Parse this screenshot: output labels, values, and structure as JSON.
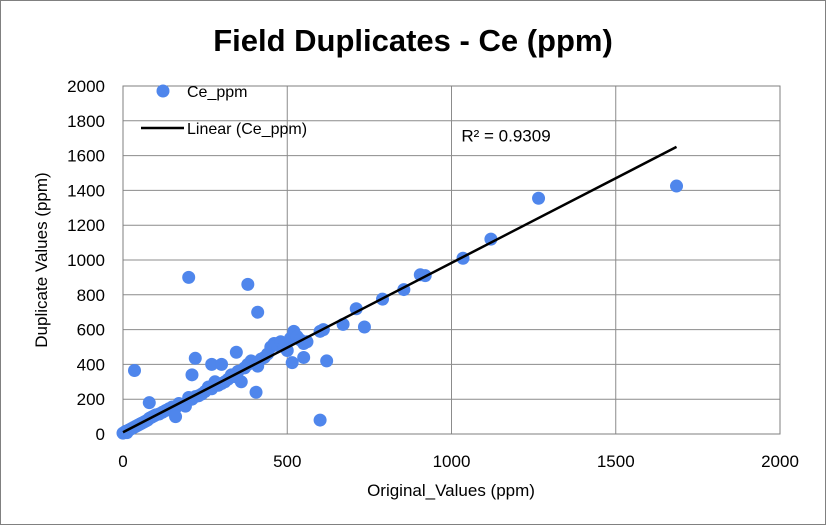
{
  "chart_data": {
    "type": "scatter",
    "title": "Field Duplicates  - Ce (ppm)",
    "xlabel": "Original_Values (ppm)",
    "ylabel": "Duplicate Values (ppm)",
    "xlim": [
      0,
      2000
    ],
    "ylim": [
      0,
      2000
    ],
    "x_ticks": [
      0,
      500,
      1000,
      1500,
      2000
    ],
    "y_ticks": [
      0,
      200,
      400,
      600,
      800,
      1000,
      1200,
      1400,
      1600,
      1800,
      2000
    ],
    "x_tick_labels": [
      "0",
      "500",
      "1000",
      "1500",
      "2000"
    ],
    "y_tick_labels": [
      "0",
      "200",
      "400",
      "600",
      "800",
      "1000",
      "1200",
      "1400",
      "1600",
      "1800",
      "2000"
    ],
    "grid": true,
    "legend_position": "top-left",
    "series": [
      {
        "name": "Ce_ppm",
        "color": "#4f86ec",
        "points": [
          [
            0,
            5
          ],
          [
            5,
            10
          ],
          [
            8,
            15
          ],
          [
            12,
            8
          ],
          [
            15,
            20
          ],
          [
            20,
            25
          ],
          [
            25,
            30
          ],
          [
            30,
            35
          ],
          [
            35,
            40
          ],
          [
            40,
            45
          ],
          [
            45,
            50
          ],
          [
            50,
            55
          ],
          [
            55,
            60
          ],
          [
            60,
            65
          ],
          [
            65,
            70
          ],
          [
            70,
            75
          ],
          [
            75,
            80
          ],
          [
            80,
            90
          ],
          [
            85,
            95
          ],
          [
            90,
            100
          ],
          [
            95,
            105
          ],
          [
            100,
            110
          ],
          [
            110,
            115
          ],
          [
            120,
            125
          ],
          [
            130,
            135
          ],
          [
            140,
            145
          ],
          [
            150,
            155
          ],
          [
            160,
            150
          ],
          [
            170,
            175
          ],
          [
            180,
            170
          ],
          [
            190,
            160
          ],
          [
            200,
            210
          ],
          [
            210,
            200
          ],
          [
            220,
            215
          ],
          [
            230,
            220
          ],
          [
            240,
            230
          ],
          [
            250,
            245
          ],
          [
            260,
            270
          ],
          [
            270,
            260
          ],
          [
            280,
            300
          ],
          [
            290,
            280
          ],
          [
            300,
            290
          ],
          [
            310,
            300
          ],
          [
            320,
            315
          ],
          [
            330,
            340
          ],
          [
            340,
            330
          ],
          [
            350,
            360
          ],
          [
            360,
            300
          ],
          [
            370,
            380
          ],
          [
            380,
            400
          ],
          [
            390,
            420
          ],
          [
            400,
            410
          ],
          [
            410,
            390
          ],
          [
            420,
            430
          ],
          [
            430,
            440
          ],
          [
            440,
            460
          ],
          [
            450,
            500
          ],
          [
            460,
            520
          ],
          [
            470,
            510
          ],
          [
            480,
            530
          ],
          [
            490,
            500
          ],
          [
            500,
            480
          ],
          [
            510,
            550
          ],
          [
            520,
            590
          ],
          [
            530,
            560
          ],
          [
            540,
            540
          ],
          [
            550,
            520
          ],
          [
            560,
            530
          ],
          [
            600,
            590
          ],
          [
            610,
            600
          ],
          [
            35,
            365
          ],
          [
            80,
            180
          ],
          [
            160,
            100
          ],
          [
            200,
            900
          ],
          [
            220,
            435
          ],
          [
            210,
            340
          ],
          [
            270,
            400
          ],
          [
            300,
            400
          ],
          [
            345,
            470
          ],
          [
            380,
            860
          ],
          [
            410,
            700
          ],
          [
            405,
            240
          ],
          [
            515,
            410
          ],
          [
            550,
            440
          ],
          [
            600,
            80
          ],
          [
            620,
            420
          ],
          [
            670,
            630
          ],
          [
            710,
            720
          ],
          [
            735,
            615
          ],
          [
            790,
            775
          ],
          [
            855,
            830
          ],
          [
            905,
            915
          ],
          [
            920,
            910
          ],
          [
            1035,
            1010
          ],
          [
            1120,
            1120
          ],
          [
            1265,
            1355
          ],
          [
            1685,
            1425
          ]
        ]
      }
    ],
    "trendline": {
      "name": "Linear (Ce_ppm)",
      "color": "#000000",
      "x": [
        0,
        1685
      ],
      "y": [
        10,
        1650
      ],
      "annotation": "R² = 0.9309",
      "annotation_position": [
        1030,
        1680
      ]
    }
  }
}
